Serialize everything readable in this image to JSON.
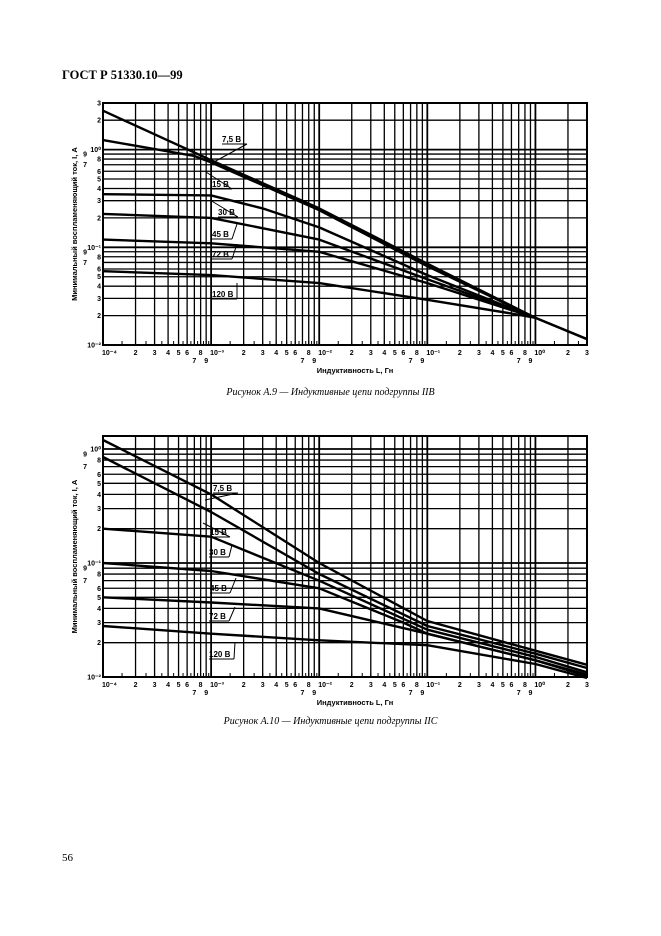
{
  "header": {
    "title": "ГОСТ Р 51330.10—99"
  },
  "page_number": "56",
  "chart_data": [
    {
      "type": "line",
      "caption": "Рисунок А.9 — Индуктивные цепи подгруппы IIB",
      "xlabel": "Индуктивность L, Гн",
      "ylabel": "Минимальный воспламеняющий ток, I, А",
      "xscale": "log",
      "yscale": "log",
      "xlim": [
        0.0001,
        3
      ],
      "ylim": [
        0.01,
        3
      ],
      "grid": true,
      "x_ticks": [
        [
          0.0001,
          "10⁻⁴"
        ],
        [
          0.0002,
          "2"
        ],
        [
          0.0003,
          "3"
        ],
        [
          0.0004,
          "4"
        ],
        [
          0.0005,
          "5"
        ],
        [
          0.0006,
          "6"
        ],
        [
          0.0007,
          "7"
        ],
        [
          0.0008,
          "8"
        ],
        [
          0.0009,
          "9"
        ],
        [
          0.001,
          "10⁻³"
        ],
        [
          0.002,
          "2"
        ],
        [
          0.003,
          "3"
        ],
        [
          0.004,
          "4"
        ],
        [
          0.005,
          "5"
        ],
        [
          0.006,
          "6"
        ],
        [
          0.007,
          "7"
        ],
        [
          0.008,
          "8"
        ],
        [
          0.009,
          "9"
        ],
        [
          0.01,
          "10⁻²"
        ],
        [
          0.02,
          "2"
        ],
        [
          0.03,
          "3"
        ],
        [
          0.04,
          "4"
        ],
        [
          0.05,
          "5"
        ],
        [
          0.06,
          "6"
        ],
        [
          0.07,
          "7"
        ],
        [
          0.08,
          "8"
        ],
        [
          0.09,
          "9"
        ],
        [
          0.1,
          "10⁻¹"
        ],
        [
          0.2,
          "2"
        ],
        [
          0.3,
          "3"
        ],
        [
          0.4,
          "4"
        ],
        [
          0.5,
          "5"
        ],
        [
          0.6,
          "6"
        ],
        [
          0.7,
          "7"
        ],
        [
          0.8,
          "8"
        ],
        [
          0.9,
          "9"
        ],
        [
          1,
          "10⁰"
        ],
        [
          2,
          "2"
        ],
        [
          3,
          "3"
        ]
      ],
      "y_ticks": [
        [
          0.01,
          "10⁻²"
        ],
        [
          0.02,
          "2"
        ],
        [
          0.03,
          "3"
        ],
        [
          0.04,
          "4"
        ],
        [
          0.05,
          "5"
        ],
        [
          0.06,
          "6"
        ],
        [
          0.07,
          "7"
        ],
        [
          0.08,
          "8"
        ],
        [
          0.09,
          "9"
        ],
        [
          0.1,
          "10⁻¹"
        ],
        [
          0.2,
          "2"
        ],
        [
          0.3,
          "3"
        ],
        [
          0.4,
          "4"
        ],
        [
          0.5,
          "5"
        ],
        [
          0.6,
          "6"
        ],
        [
          0.7,
          "7"
        ],
        [
          0.8,
          "8"
        ],
        [
          0.9,
          "9"
        ],
        [
          1,
          "10⁰"
        ],
        [
          2,
          "2"
        ],
        [
          3,
          "3"
        ]
      ],
      "series": [
        {
          "name": "7,5 В",
          "points": [
            [
              0.0001,
              2.5
            ],
            [
              0.001,
              0.78
            ],
            [
              0.01,
              0.25
            ],
            [
              0.1,
              0.068
            ],
            [
              1,
              0.019
            ],
            [
              3,
              0.0115
            ]
          ]
        },
        {
          "name": "15 В",
          "points": [
            [
              0.0001,
              1.25
            ],
            [
              0.0007,
              0.86
            ],
            [
              0.001,
              0.74
            ],
            [
              0.01,
              0.24
            ],
            [
              0.1,
              0.064
            ],
            [
              1,
              0.019
            ],
            [
              3,
              0.0115
            ]
          ]
        },
        {
          "name": "30 В",
          "points": [
            [
              0.0001,
              0.35
            ],
            [
              0.001,
              0.34
            ],
            [
              0.003,
              0.25
            ],
            [
              0.01,
              0.16
            ],
            [
              0.1,
              0.052
            ],
            [
              1,
              0.019
            ]
          ]
        },
        {
          "name": "45 В",
          "points": [
            [
              0.0001,
              0.22
            ],
            [
              0.001,
              0.2
            ],
            [
              0.01,
              0.12
            ],
            [
              0.1,
              0.047
            ],
            [
              1,
              0.019
            ]
          ]
        },
        {
          "name": "72 В",
          "points": [
            [
              0.0001,
              0.12
            ],
            [
              0.001,
              0.11
            ],
            [
              0.01,
              0.09
            ],
            [
              0.1,
              0.043
            ],
            [
              1,
              0.019
            ]
          ]
        },
        {
          "name": "120 В",
          "points": [
            [
              0.0001,
              0.057
            ],
            [
              0.001,
              0.052
            ],
            [
              0.01,
              0.043
            ],
            [
              0.1,
              0.029
            ],
            [
              0.6,
              0.021
            ],
            [
              1,
              0.019
            ]
          ]
        }
      ]
    },
    {
      "type": "line",
      "caption": "Рисунок А.10 — Индуктивные цепи подгруппы IIC",
      "xlabel": "Индуктивность L, Гн",
      "ylabel": "Минимальный воспламеняющий ток, I, А",
      "xscale": "log",
      "yscale": "log",
      "xlim": [
        0.0001,
        3
      ],
      "ylim": [
        0.01,
        1.3
      ],
      "grid": true,
      "x_ticks": [
        [
          0.0001,
          "10⁻⁴"
        ],
        [
          0.0002,
          "2"
        ],
        [
          0.0003,
          "3"
        ],
        [
          0.0004,
          "4"
        ],
        [
          0.0005,
          "5"
        ],
        [
          0.0006,
          "6"
        ],
        [
          0.0007,
          "7"
        ],
        [
          0.0008,
          "8"
        ],
        [
          0.0009,
          "9"
        ],
        [
          0.001,
          "10⁻³"
        ],
        [
          0.002,
          "2"
        ],
        [
          0.003,
          "3"
        ],
        [
          0.004,
          "4"
        ],
        [
          0.005,
          "5"
        ],
        [
          0.006,
          "6"
        ],
        [
          0.007,
          "7"
        ],
        [
          0.008,
          "8"
        ],
        [
          0.009,
          "9"
        ],
        [
          0.01,
          "10⁻²"
        ],
        [
          0.02,
          "2"
        ],
        [
          0.03,
          "3"
        ],
        [
          0.04,
          "4"
        ],
        [
          0.05,
          "5"
        ],
        [
          0.06,
          "6"
        ],
        [
          0.07,
          "7"
        ],
        [
          0.08,
          "8"
        ],
        [
          0.09,
          "9"
        ],
        [
          0.1,
          "10⁻¹"
        ],
        [
          0.2,
          "2"
        ],
        [
          0.3,
          "3"
        ],
        [
          0.4,
          "4"
        ],
        [
          0.5,
          "5"
        ],
        [
          0.6,
          "6"
        ],
        [
          0.7,
          "7"
        ],
        [
          0.8,
          "8"
        ],
        [
          0.9,
          "9"
        ],
        [
          1,
          "10⁰"
        ],
        [
          2,
          "2"
        ],
        [
          3,
          "3"
        ]
      ],
      "y_ticks": [
        [
          0.01,
          "10⁻²"
        ],
        [
          0.02,
          "2"
        ],
        [
          0.03,
          "3"
        ],
        [
          0.04,
          "4"
        ],
        [
          0.05,
          "5"
        ],
        [
          0.06,
          "6"
        ],
        [
          0.07,
          "7"
        ],
        [
          0.08,
          "8"
        ],
        [
          0.09,
          "9"
        ],
        [
          0.1,
          "10⁻¹"
        ],
        [
          0.2,
          "2"
        ],
        [
          0.3,
          "3"
        ],
        [
          0.4,
          "4"
        ],
        [
          0.5,
          "5"
        ],
        [
          0.6,
          "6"
        ],
        [
          0.7,
          "7"
        ],
        [
          0.8,
          "8"
        ],
        [
          0.9,
          "9"
        ],
        [
          1,
          "10⁰"
        ]
      ],
      "series": [
        {
          "name": "7,5 В",
          "points": [
            [
              0.0001,
              1.2
            ],
            [
              0.001,
              0.4
            ],
            [
              0.01,
              0.1
            ],
            [
              0.1,
              0.031
            ],
            [
              1,
              0.017
            ],
            [
              3,
              0.0128
            ]
          ]
        },
        {
          "name": "15 В",
          "points": [
            [
              0.0001,
              0.85
            ],
            [
              0.001,
              0.28
            ],
            [
              0.01,
              0.08
            ],
            [
              0.1,
              0.028
            ],
            [
              1,
              0.016
            ],
            [
              3,
              0.012
            ]
          ]
        },
        {
          "name": "30 В",
          "points": [
            [
              0.0001,
              0.2
            ],
            [
              0.001,
              0.17
            ],
            [
              0.01,
              0.07
            ],
            [
              0.1,
              0.026
            ],
            [
              1,
              0.015
            ],
            [
              3,
              0.011
            ]
          ]
        },
        {
          "name": "45 В",
          "points": [
            [
              0.0001,
              0.1
            ],
            [
              0.001,
              0.085
            ],
            [
              0.01,
              0.06
            ],
            [
              0.06,
              0.03
            ],
            [
              0.1,
              0.024
            ],
            [
              1,
              0.014
            ],
            [
              3,
              0.0105
            ]
          ]
        },
        {
          "name": "72 В",
          "points": [
            [
              0.0001,
              0.05
            ],
            [
              0.001,
              0.045
            ],
            [
              0.01,
              0.04
            ],
            [
              0.1,
              0.024
            ],
            [
              1,
              0.014
            ],
            [
              3,
              0.0102
            ]
          ]
        },
        {
          "name": "120 В",
          "points": [
            [
              0.0001,
              0.028
            ],
            [
              0.001,
              0.024
            ],
            [
              0.01,
              0.021
            ],
            [
              0.1,
              0.019
            ],
            [
              1,
              0.013
            ],
            [
              3,
              0.0098
            ]
          ]
        }
      ]
    }
  ]
}
